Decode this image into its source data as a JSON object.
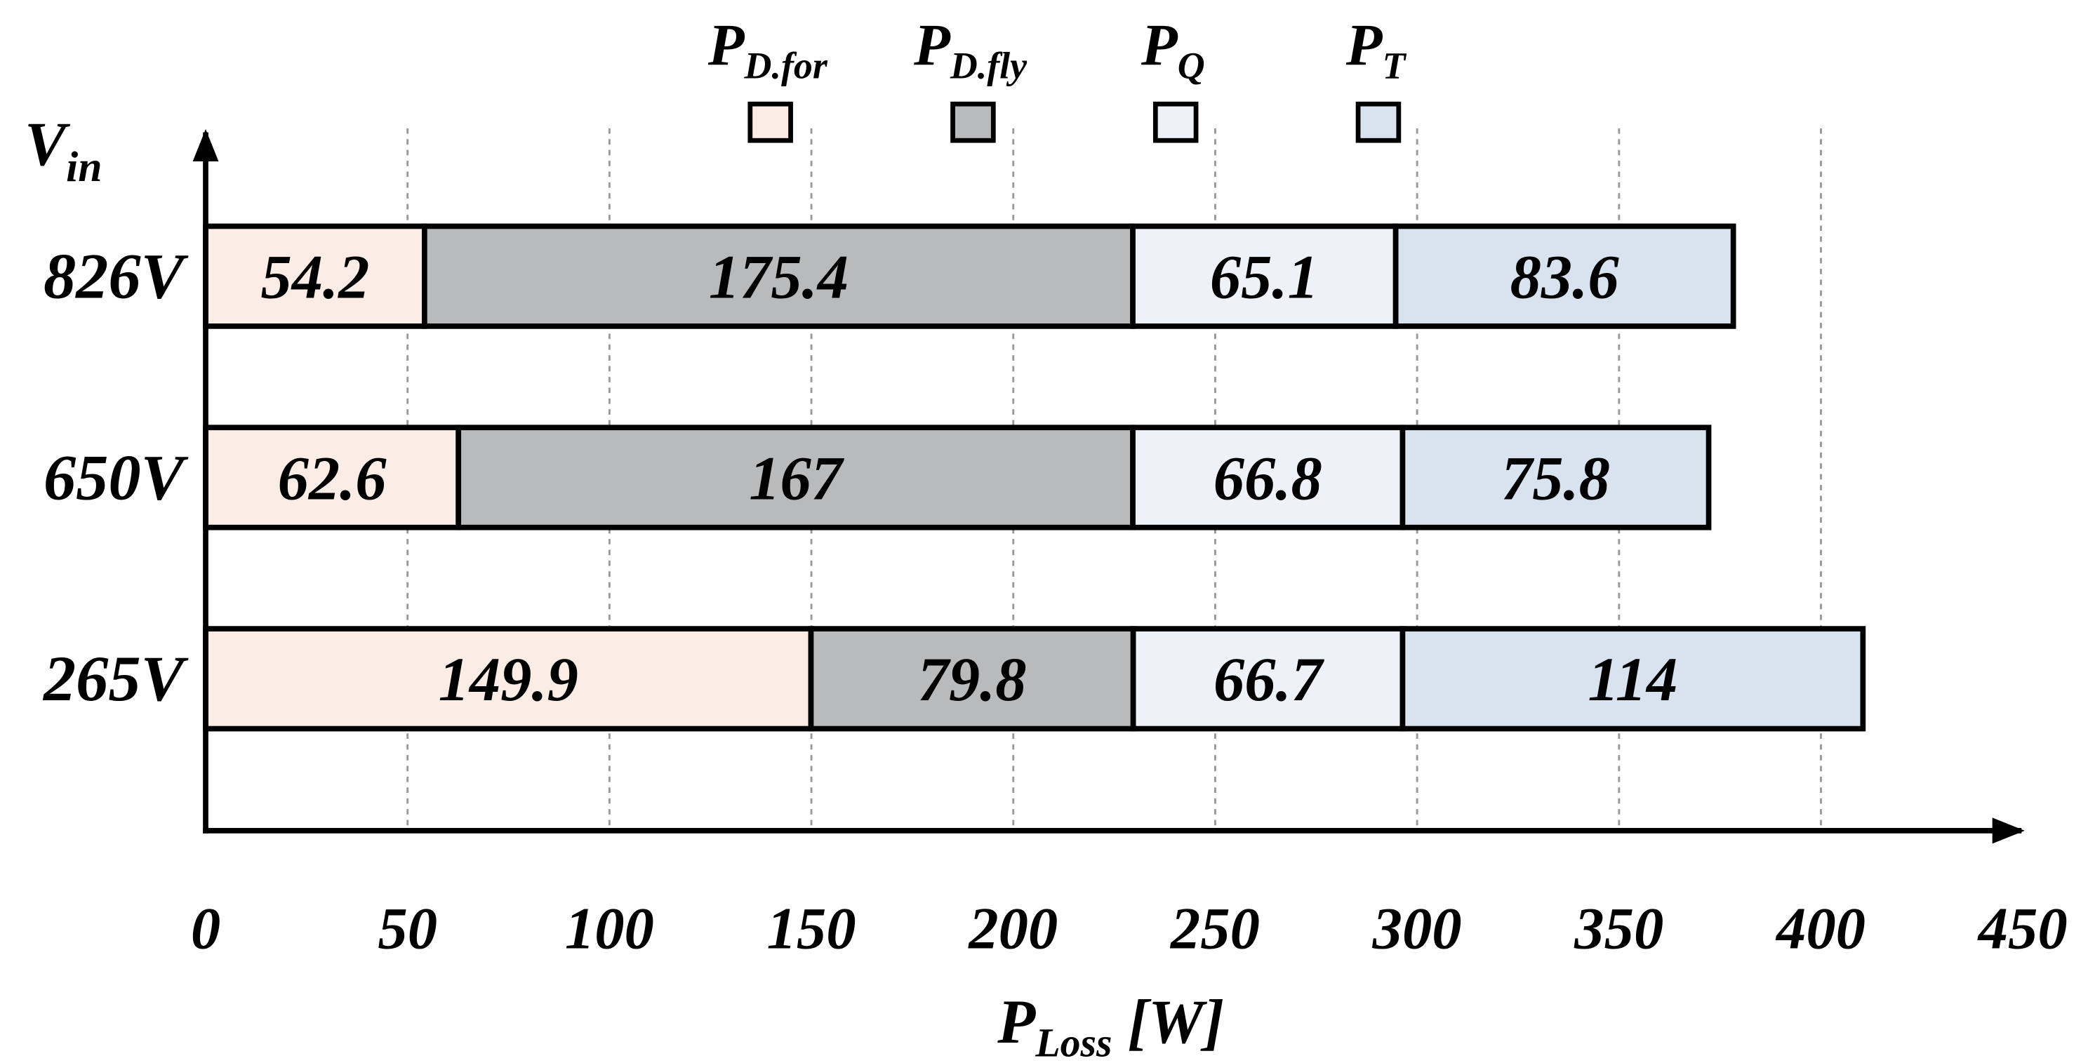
{
  "chart_data": {
    "type": "stacked-barh",
    "categories": [
      "826V",
      "650V",
      "265V"
    ],
    "series": [
      {
        "name": "P",
        "name_sub": "D.for",
        "color": "#fbece6",
        "values": [
          54.2,
          62.6,
          149.9
        ]
      },
      {
        "name": "P",
        "name_sub": "D.fly",
        "color": "#b9babc",
        "values": [
          175.4,
          167,
          79.8
        ]
      },
      {
        "name": "P",
        "name_sub": "Q",
        "color": "#eef2f8",
        "values": [
          65.1,
          66.8,
          66.7
        ]
      },
      {
        "name": "P",
        "name_sub": "T",
        "color": "#d8e3ef",
        "values": [
          83.6,
          75.8,
          114
        ]
      }
    ],
    "xlim": [
      0,
      450
    ],
    "xticks": [
      0,
      50,
      100,
      150,
      200,
      250,
      300,
      350,
      400,
      450
    ],
    "x_label": {
      "main": "P",
      "sub": "Loss",
      "suffix": " [W]"
    },
    "y_label": {
      "main": "V",
      "sub": "in"
    },
    "grid": true,
    "legend": "top"
  }
}
